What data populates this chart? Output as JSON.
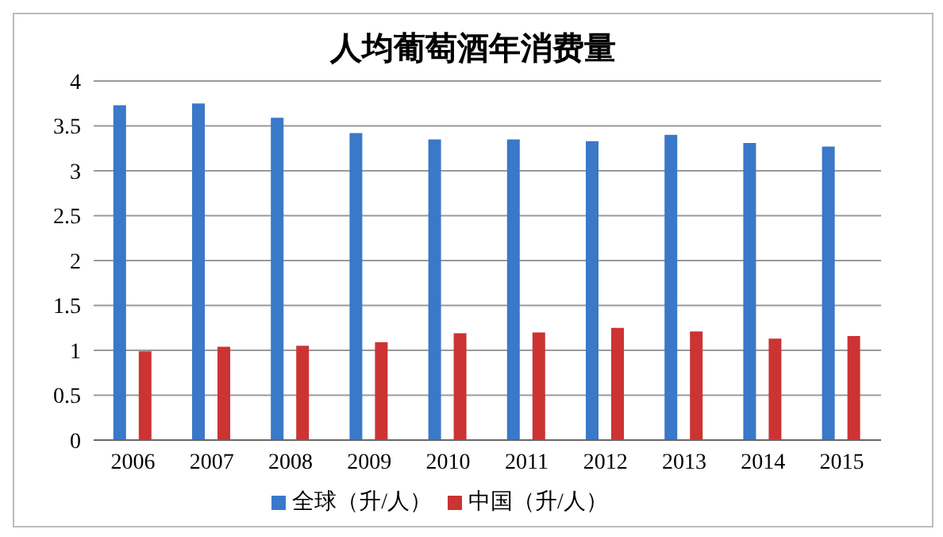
{
  "chart_data": {
    "type": "bar",
    "title": "人均葡萄酒年消费量",
    "categories": [
      "2006",
      "2007",
      "2008",
      "2009",
      "2010",
      "2011",
      "2012",
      "2013",
      "2014",
      "2015"
    ],
    "series": [
      {
        "name": "全球（升/人）",
        "color": "#3a78c8",
        "values": [
          3.73,
          3.75,
          3.59,
          3.42,
          3.35,
          3.35,
          3.33,
          3.4,
          3.31,
          3.27
        ]
      },
      {
        "name": "中国（升/人）",
        "color": "#cc3333",
        "values": [
          0.99,
          1.04,
          1.05,
          1.09,
          1.19,
          1.2,
          1.25,
          1.21,
          1.13,
          1.16
        ]
      }
    ],
    "ylim": [
      0,
      4
    ],
    "yticks": [
      0,
      0.5,
      1,
      1.5,
      2,
      2.5,
      3,
      3.5,
      4
    ],
    "grid": "y",
    "legend": "bottom"
  }
}
